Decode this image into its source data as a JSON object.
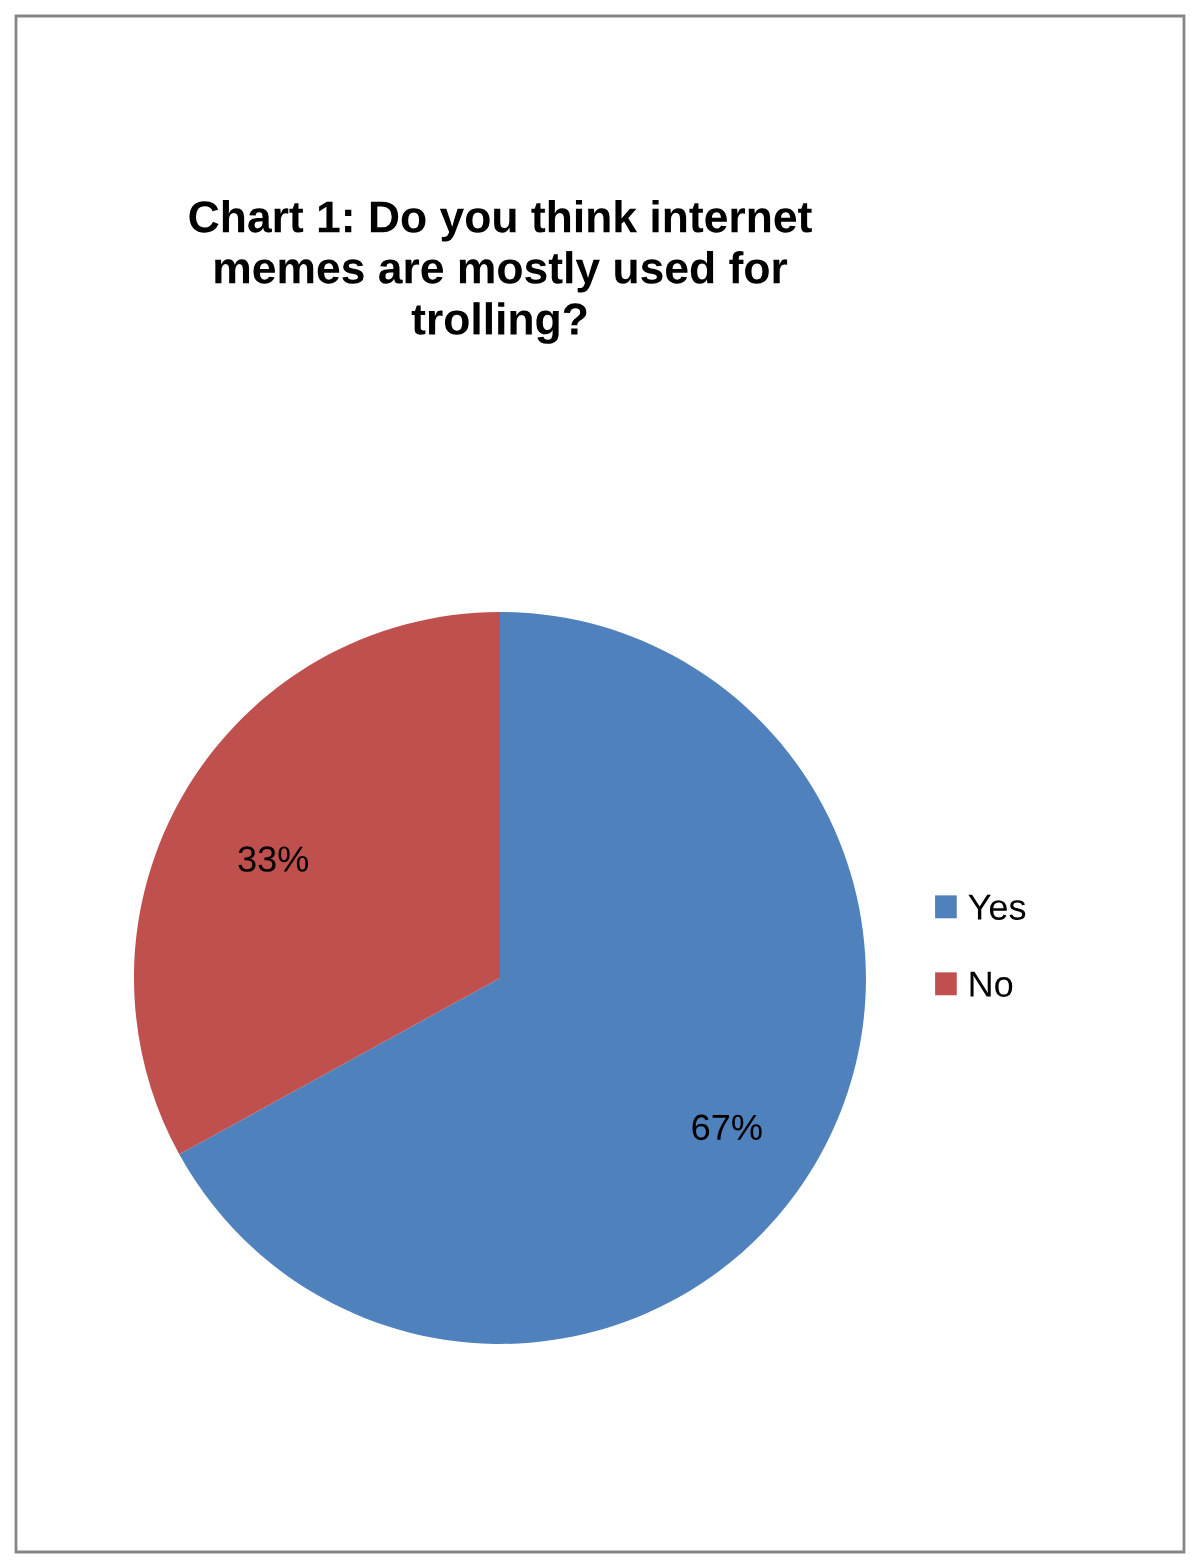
{
  "chart_data": {
    "type": "pie",
    "title": "Chart 1: Do you think internet memes are mostly used for trolling?",
    "categories": [
      "Yes",
      "No"
    ],
    "values": [
      67,
      33
    ],
    "colors": [
      "#4f81bd",
      "#c0504d"
    ],
    "value_labels": [
      "67%",
      "33%"
    ],
    "legend": "right"
  }
}
